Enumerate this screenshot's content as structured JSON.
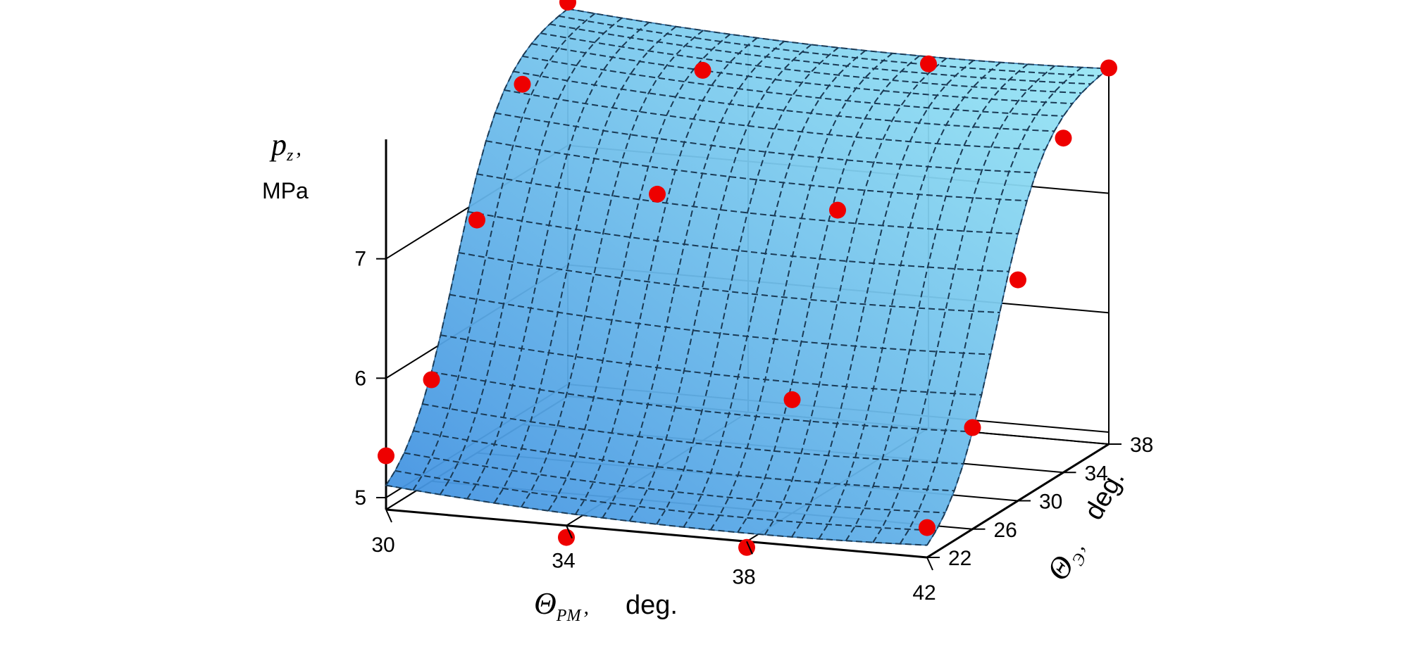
{
  "chart_data": {
    "type": "surface3d",
    "title": "",
    "axes": {
      "x": {
        "symbol": "Θ",
        "subscript": "PM",
        "separator": ",",
        "unit": "deg.",
        "ticks": [
          "30",
          "34",
          "38",
          "42"
        ],
        "range": [
          30,
          42
        ]
      },
      "y": {
        "symbol": "Θ",
        "subscript": "Э",
        "separator": ",",
        "unit": "deg.",
        "ticks": [
          "22",
          "26",
          "30",
          "34",
          "38"
        ],
        "range": [
          22,
          38
        ]
      },
      "z": {
        "symbol": "p",
        "subscript": "z",
        "separator": ",",
        "unit": "MPa",
        "ticks": [
          "5",
          "6",
          "7"
        ],
        "range": [
          5,
          8
        ]
      }
    },
    "surface": {
      "description": "fitted response surface",
      "color_low": "#3f8fe0",
      "color_high": "#9fecf6",
      "mesh_color": "#1a3a55",
      "mesh_style": "dashed"
    },
    "measured_points": {
      "color": "#ee0000",
      "points": [
        {
          "x": 30,
          "y": 22,
          "z": 5.35
        },
        {
          "x": 30,
          "y": 26,
          "z": 5.75
        },
        {
          "x": 30,
          "y": 30,
          "z": 6.85
        },
        {
          "x": 30,
          "y": 34,
          "z": 7.75
        },
        {
          "x": 30,
          "y": 38,
          "z": 8.2
        },
        {
          "x": 34,
          "y": 22,
          "z": 4.8
        },
        {
          "x": 34,
          "y": 30,
          "z": 7.2
        },
        {
          "x": 34,
          "y": 34,
          "z": 8.0
        },
        {
          "x": 38,
          "y": 22,
          "z": 4.85
        },
        {
          "x": 38,
          "y": 26,
          "z": 5.85
        },
        {
          "x": 38,
          "y": 30,
          "z": 7.2
        },
        {
          "x": 38,
          "y": 38,
          "z": 7.95
        },
        {
          "x": 42,
          "y": 22,
          "z": 5.15
        },
        {
          "x": 42,
          "y": 26,
          "z": 5.75
        },
        {
          "x": 42,
          "y": 30,
          "z": 6.75
        },
        {
          "x": 42,
          "y": 34,
          "z": 7.7
        },
        {
          "x": 42,
          "y": 38,
          "z": 8.05
        }
      ]
    },
    "grid": true,
    "legend": false
  }
}
